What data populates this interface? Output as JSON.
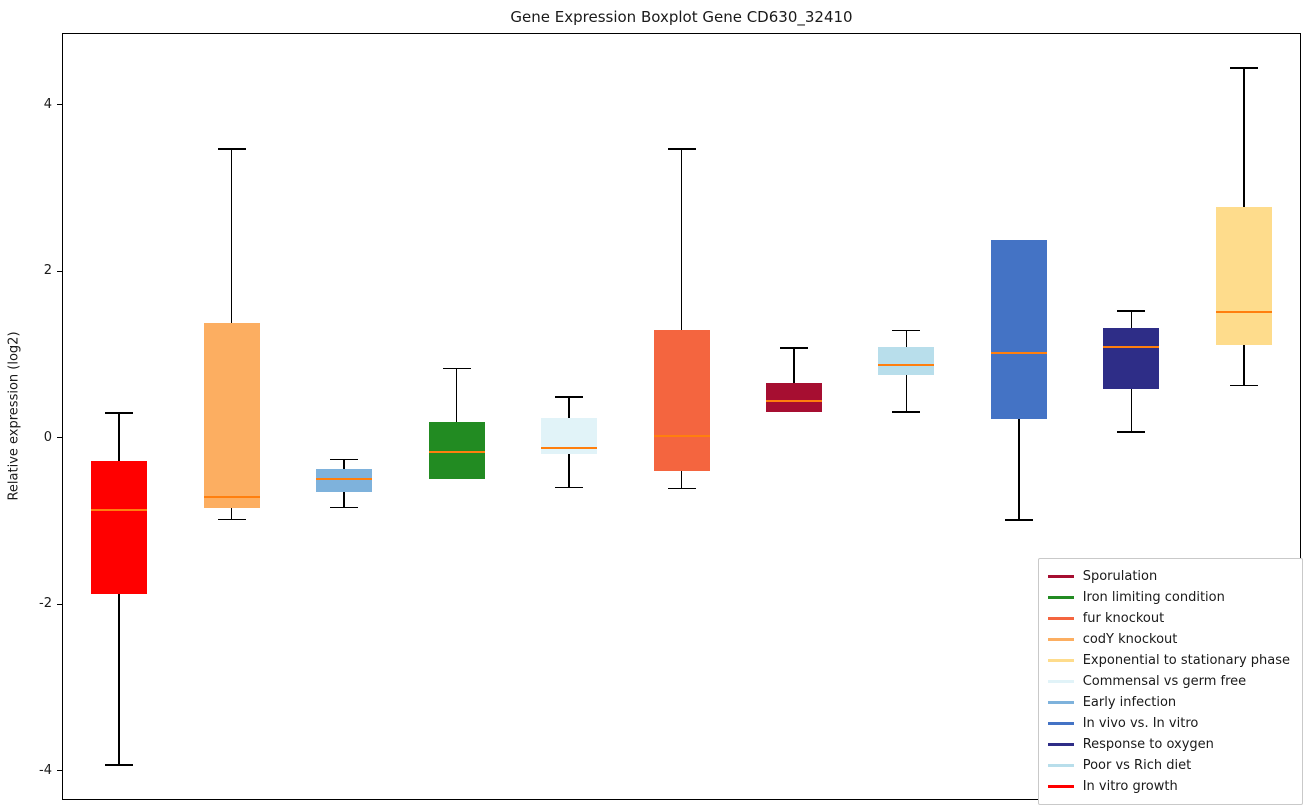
{
  "chart_data": {
    "type": "boxplot",
    "title": "Gene Expression Boxplot Gene CD630_32410",
    "ylabel": "Relative expression (log2)",
    "ylim": [
      -4.34,
      4.85
    ],
    "yticks": [
      -4,
      -2,
      0,
      2,
      4
    ],
    "grid": false,
    "legend_position": "lower right",
    "median_color": "#FF7F0E",
    "whisker_color": "#000000",
    "series": [
      {
        "name": "In vitro growth",
        "color": "#FF0000",
        "whislo": -3.93,
        "q1": -1.88,
        "med": -0.87,
        "q3": -0.28,
        "whishi": 0.3
      },
      {
        "name": "codY knockout",
        "color": "#FCAE61",
        "whislo": -0.98,
        "q1": -0.84,
        "med": -0.71,
        "q3": 1.38,
        "whishi": 3.47
      },
      {
        "name": "Early infection",
        "color": "#7EB2DC",
        "whislo": -0.84,
        "q1": -0.65,
        "med": -0.5,
        "q3": -0.38,
        "whishi": -0.26
      },
      {
        "name": "Iron limiting condition",
        "color": "#228B22",
        "whislo": -0.5,
        "q1": -0.5,
        "med": -0.17,
        "q3": 0.19,
        "whishi": 0.83
      },
      {
        "name": "Commensal vs germ free",
        "color": "#E1F3F8",
        "whislo": -0.6,
        "q1": -0.2,
        "med": -0.12,
        "q3": 0.24,
        "whishi": 0.49
      },
      {
        "name": "fur knockout",
        "color": "#F4653F",
        "whislo": -0.61,
        "q1": -0.4,
        "med": 0.02,
        "q3": 1.29,
        "whishi": 3.47
      },
      {
        "name": "Sporulation",
        "color": "#A60E31",
        "whislo": 0.31,
        "q1": 0.31,
        "med": 0.44,
        "q3": 0.66,
        "whishi": 1.08
      },
      {
        "name": "Poor vs Rich diet",
        "color": "#B8DEEB",
        "whislo": 0.31,
        "q1": 0.75,
        "med": 0.87,
        "q3": 1.09,
        "whishi": 1.29
      },
      {
        "name": "In vivo vs. In vitro",
        "color": "#4473C5",
        "whislo": -0.99,
        "q1": 0.22,
        "med": 1.02,
        "q3": 2.37,
        "whishi": 2.37
      },
      {
        "name": "Response to oxygen",
        "color": "#2E2D87",
        "whislo": 0.07,
        "q1": 0.59,
        "med": 1.09,
        "q3": 1.32,
        "whishi": 1.52
      },
      {
        "name": "Exponential to stationary phase",
        "color": "#FEDC8C",
        "whislo": 0.63,
        "q1": 1.11,
        "med": 1.51,
        "q3": 2.77,
        "whishi": 4.44
      }
    ],
    "legend": [
      {
        "label": "Sporulation",
        "color": "#A60E31"
      },
      {
        "label": "Iron limiting condition",
        "color": "#228B22"
      },
      {
        "label": "fur knockout",
        "color": "#F4653F"
      },
      {
        "label": "codY knockout",
        "color": "#FCAE61"
      },
      {
        "label": "Exponential to stationary phase",
        "color": "#FEDC8C"
      },
      {
        "label": "Commensal vs germ free",
        "color": "#E1F3F8"
      },
      {
        "label": "Early infection",
        "color": "#7EB2DC"
      },
      {
        "label": "In vivo vs. In vitro",
        "color": "#4473C5"
      },
      {
        "label": "Response to oxygen",
        "color": "#2E2D87"
      },
      {
        "label": "Poor vs Rich diet",
        "color": "#B8DEEB"
      },
      {
        "label": "In vitro growth",
        "color": "#FF0000"
      }
    ]
  }
}
